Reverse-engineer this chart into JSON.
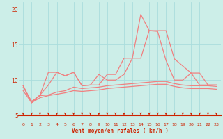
{
  "xlabel": "Vent moyen/en rafales ( km/h )",
  "bg_color": "#cceee8",
  "line_color": "#f08080",
  "grid_color": "#aadddd",
  "text_color": "#cc2200",
  "xlim": [
    -0.5,
    23.5
  ],
  "ylim": [
    5,
    21
  ],
  "xticks": [
    0,
    1,
    2,
    3,
    4,
    5,
    6,
    7,
    8,
    9,
    10,
    11,
    12,
    13,
    14,
    15,
    16,
    17,
    18,
    19,
    20,
    21,
    22,
    23
  ],
  "yticks": [
    5,
    10,
    15,
    20
  ],
  "line1_x": [
    0,
    1,
    2,
    3,
    4,
    5,
    6,
    7,
    8,
    9,
    10,
    11,
    12,
    13,
    14,
    15,
    16,
    17,
    18,
    19,
    20,
    21,
    22,
    23
  ],
  "line1_y": [
    9.2,
    6.8,
    7.9,
    11.1,
    11.1,
    10.6,
    11.1,
    9.2,
    9.3,
    9.3,
    10.8,
    10.8,
    13.1,
    13.1,
    13.1,
    17.0,
    17.0,
    17.0,
    13.0,
    12.0,
    11.0,
    11.0,
    9.3,
    9.3
  ],
  "line2_x": [
    0,
    1,
    2,
    3,
    4,
    5,
    6,
    7,
    8,
    9,
    10,
    11,
    12,
    13,
    14,
    15,
    16,
    17,
    18,
    19,
    20,
    21,
    22,
    23
  ],
  "line2_y": [
    9.2,
    6.8,
    7.9,
    9.3,
    11.1,
    10.6,
    11.1,
    9.2,
    9.3,
    10.8,
    10.0,
    10.0,
    10.8,
    13.1,
    19.3,
    17.0,
    16.9,
    12.8,
    10.0,
    10.0,
    11.0,
    9.3,
    9.3,
    9.3
  ],
  "line3_x": [
    0,
    1,
    2,
    3,
    4,
    5,
    6,
    7,
    8,
    9,
    10,
    11,
    12,
    13,
    14,
    15,
    16,
    17,
    18,
    19,
    20,
    21,
    22,
    23
  ],
  "line3_y": [
    9.0,
    7.0,
    7.8,
    7.9,
    8.3,
    8.5,
    9.0,
    8.8,
    8.9,
    9.0,
    9.2,
    9.3,
    9.4,
    9.5,
    9.6,
    9.7,
    9.8,
    9.8,
    9.5,
    9.3,
    9.2,
    9.2,
    9.2,
    9.1
  ],
  "line4_x": [
    0,
    1,
    2,
    3,
    4,
    5,
    6,
    7,
    8,
    9,
    10,
    11,
    12,
    13,
    14,
    15,
    16,
    17,
    18,
    19,
    20,
    21,
    22,
    23
  ],
  "line4_y": [
    8.5,
    6.8,
    7.5,
    7.8,
    8.0,
    8.2,
    8.5,
    8.4,
    8.5,
    8.6,
    8.8,
    8.9,
    9.0,
    9.1,
    9.2,
    9.3,
    9.4,
    9.4,
    9.1,
    8.9,
    8.8,
    8.8,
    8.8,
    8.7
  ],
  "arrow_color": "#cc2200"
}
